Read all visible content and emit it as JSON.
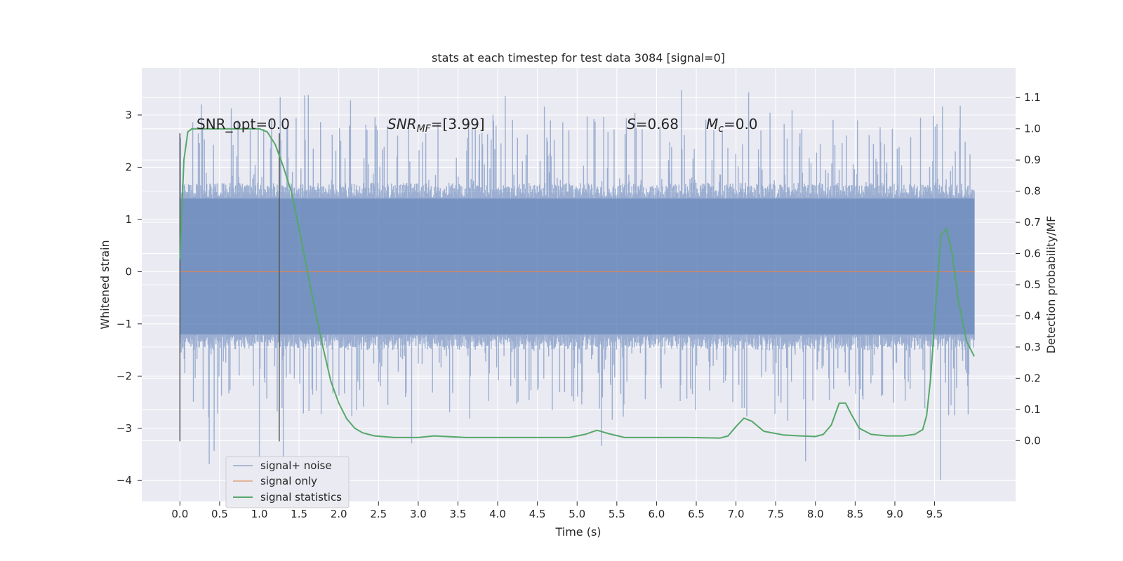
{
  "chart_data": {
    "type": "line",
    "title": "stats at each timestep for test data 3084 [signal=0]",
    "xlabel": "Time (s)",
    "ylabel": "Whitened strain",
    "y2label": "Detection probability/MF",
    "xlim": [
      -0.48,
      10.52
    ],
    "ylim": [
      -4.4,
      3.9
    ],
    "y2lim": [
      -0.195,
      1.195
    ],
    "xticks": [
      0.0,
      0.5,
      1.0,
      1.5,
      2.0,
      2.5,
      3.0,
      3.5,
      4.0,
      4.5,
      5.0,
      5.5,
      6.0,
      6.5,
      7.0,
      7.5,
      8.0,
      8.5,
      9.0,
      9.5
    ],
    "xtick_labels": [
      "0.0",
      "0.5",
      "1.0",
      "1.5",
      "2.0",
      "2.5",
      "3.0",
      "3.5",
      "4.0",
      "4.5",
      "5.0",
      "5.5",
      "6.0",
      "6.5",
      "7.0",
      "7.5",
      "8.0",
      "8.5",
      "9.0",
      "9.5"
    ],
    "yticks": [
      -4,
      -3,
      -2,
      -1,
      0,
      1,
      2,
      3
    ],
    "ytick_labels": [
      "−4",
      "−3",
      "−2",
      "−1",
      "0",
      "1",
      "2",
      "3"
    ],
    "y2ticks": [
      0.0,
      0.1,
      0.2,
      0.3,
      0.4,
      0.5,
      0.6,
      0.7,
      0.8,
      0.9,
      1.0,
      1.1
    ],
    "y2tick_labels": [
      "0.0",
      "0.1",
      "0.2",
      "0.3",
      "0.4",
      "0.5",
      "0.6",
      "0.7",
      "0.8",
      "0.9",
      "1.0",
      "1.1"
    ],
    "grid": true,
    "legend_position": "lower-left",
    "annotations": {
      "snr_opt": "SNR_opt=0.0",
      "snr_mf_main": "SNR",
      "snr_mf_sub": "MF",
      "snr_mf_value": "=[3.99]",
      "s_main": "S",
      "s_value": "=0.68",
      "mc_main": "M",
      "mc_sub": "c",
      "mc_value": "=0.0"
    },
    "vertical_markers": [
      {
        "x": 0.0,
        "y_range": [
          -3.25,
          2.65
        ]
      },
      {
        "x": 1.25,
        "y_range": [
          -3.25,
          2.65
        ]
      }
    ],
    "series": [
      {
        "name": "signal+ noise",
        "color": "#4c72b0",
        "opacity": 0.5,
        "kind": "noisy-strain",
        "x_range": [
          0.0,
          10.0
        ],
        "envelope_upper": 1.4,
        "envelope_lower": -1.2,
        "peak_max": 3.48,
        "peak_min": -4.05
      },
      {
        "name": "signal only",
        "color": "#dd8452",
        "x": [
          0.0,
          10.0
        ],
        "y": [
          0.0,
          0.0
        ]
      },
      {
        "name": "signal statistics",
        "color": "#55a868",
        "axis": "right",
        "x": [
          0.0,
          0.05,
          0.1,
          0.15,
          0.25,
          0.4,
          0.6,
          0.8,
          1.0,
          1.1,
          1.2,
          1.3,
          1.4,
          1.5,
          1.6,
          1.7,
          1.8,
          1.9,
          2.0,
          2.1,
          2.2,
          2.3,
          2.45,
          2.7,
          3.0,
          3.2,
          3.6,
          4.0,
          4.5,
          4.9,
          5.1,
          5.25,
          5.4,
          5.6,
          5.8,
          6.1,
          6.4,
          6.8,
          6.9,
          7.0,
          7.1,
          7.2,
          7.35,
          7.6,
          7.8,
          8.0,
          8.1,
          8.2,
          8.3,
          8.38,
          8.45,
          8.55,
          8.7,
          8.9,
          9.1,
          9.25,
          9.35,
          9.4,
          9.45,
          9.52,
          9.58,
          9.65,
          9.72,
          9.8,
          9.9,
          10.0
        ],
        "y": [
          0.58,
          0.9,
          0.99,
          1.0,
          1.0,
          1.0,
          1.0,
          1.0,
          1.0,
          0.99,
          0.95,
          0.88,
          0.8,
          0.68,
          0.55,
          0.42,
          0.3,
          0.19,
          0.12,
          0.07,
          0.04,
          0.025,
          0.015,
          0.01,
          0.01,
          0.015,
          0.01,
          0.01,
          0.01,
          0.01,
          0.02,
          0.033,
          0.022,
          0.01,
          0.01,
          0.01,
          0.01,
          0.008,
          0.015,
          0.045,
          0.072,
          0.062,
          0.03,
          0.018,
          0.015,
          0.013,
          0.02,
          0.05,
          0.12,
          0.12,
          0.085,
          0.04,
          0.02,
          0.015,
          0.015,
          0.02,
          0.035,
          0.08,
          0.2,
          0.45,
          0.66,
          0.68,
          0.6,
          0.45,
          0.32,
          0.27
        ]
      }
    ]
  }
}
